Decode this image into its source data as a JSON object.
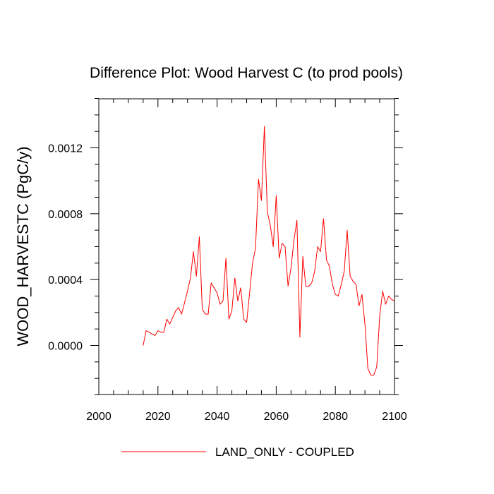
{
  "chart_data": {
    "type": "line",
    "title": "Difference Plot: Wood Harvest C (to prod pools)",
    "xlabel": "",
    "ylabel": "WOOD_HARVESTC  (PgC/y)",
    "xlim": [
      2000,
      2100
    ],
    "ylim": [
      -0.0003,
      0.0015
    ],
    "xticks": [
      2000,
      2020,
      2040,
      2060,
      2080,
      2100
    ],
    "xtick_labels": [
      "2000",
      "2020",
      "2040",
      "2060",
      "2080",
      "2100"
    ],
    "yticks": [
      0.0,
      0.0004,
      0.0008,
      0.0012
    ],
    "ytick_labels": [
      "0.0000",
      "0.0004",
      "0.0008",
      "0.0012"
    ],
    "grid": false,
    "legend_position": "bottom",
    "series": [
      {
        "name": "LAND_ONLY - COUPLED",
        "color": "#ff0000",
        "x": [
          2015,
          2016,
          2017,
          2018,
          2019,
          2020,
          2021,
          2022,
          2023,
          2024,
          2025,
          2026,
          2027,
          2028,
          2029,
          2030,
          2031,
          2032,
          2033,
          2034,
          2035,
          2036,
          2037,
          2038,
          2039,
          2040,
          2041,
          2042,
          2043,
          2044,
          2045,
          2046,
          2047,
          2048,
          2049,
          2050,
          2051,
          2052,
          2053,
          2054,
          2055,
          2056,
          2057,
          2058,
          2059,
          2060,
          2061,
          2062,
          2063,
          2064,
          2065,
          2066,
          2067,
          2068,
          2069,
          2070,
          2071,
          2072,
          2073,
          2074,
          2075,
          2076,
          2077,
          2078,
          2079,
          2080,
          2081,
          2082,
          2083,
          2084,
          2085,
          2086,
          2087,
          2088,
          2089,
          2090,
          2091,
          2092,
          2093,
          2094,
          2095,
          2096,
          2097,
          2098,
          2099,
          2100
        ],
        "y": [
          0.0,
          9e-05,
          8e-05,
          7e-05,
          6e-05,
          9e-05,
          8e-05,
          8e-05,
          0.00016,
          0.00013,
          0.00017,
          0.00021,
          0.00023,
          0.00019,
          0.00026,
          0.00033,
          0.00041,
          0.00057,
          0.00042,
          0.00066,
          0.00022,
          0.00019,
          0.00019,
          0.00038,
          0.00035,
          0.00032,
          0.00025,
          0.00027,
          0.00053,
          0.00016,
          0.00021,
          0.00041,
          0.00027,
          0.00035,
          0.00016,
          0.00014,
          0.00032,
          0.0005,
          0.00059,
          0.00101,
          0.00088,
          0.00133,
          0.00081,
          0.00073,
          0.0006,
          0.00091,
          0.00053,
          0.00062,
          0.0006,
          0.00036,
          0.00047,
          0.00064,
          0.00076,
          5e-05,
          0.00054,
          0.00036,
          0.00036,
          0.00038,
          0.00045,
          0.0006,
          0.00057,
          0.00077,
          0.00052,
          0.00048,
          0.00037,
          0.00031,
          0.0003,
          0.00037,
          0.00045,
          0.0007,
          0.00042,
          0.00039,
          0.00037,
          0.00024,
          0.00031,
          0.00013,
          -0.00014,
          -0.00018,
          -0.00018,
          -0.00013,
          0.00018,
          0.00033,
          0.00025,
          0.0003,
          0.00028,
          0.00027
        ]
      }
    ]
  }
}
